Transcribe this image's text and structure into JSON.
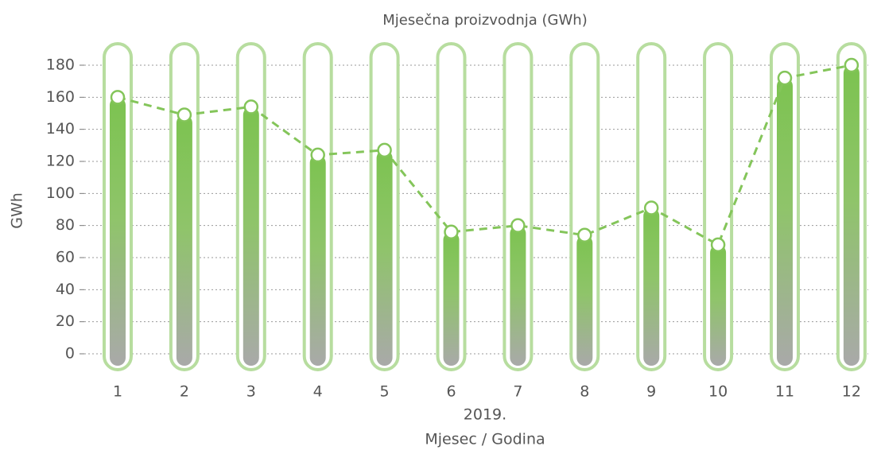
{
  "chart_data": {
    "type": "bar",
    "title": "Mjesečna proizvodnja (GWh)",
    "y_label": "GWh",
    "x_group_label": "2019.",
    "x_label": "Mjesec / Godina",
    "categories": [
      "1",
      "2",
      "3",
      "4",
      "5",
      "6",
      "7",
      "8",
      "9",
      "10",
      "11",
      "12"
    ],
    "values": [
      160,
      149,
      154,
      124,
      127,
      76,
      80,
      74,
      91,
      68,
      172,
      180
    ],
    "color": "#84c55a",
    "ylim": [
      0,
      180
    ],
    "yticks": [
      0,
      20,
      40,
      60,
      80,
      100,
      120,
      140,
      160,
      180
    ],
    "grid": true
  }
}
